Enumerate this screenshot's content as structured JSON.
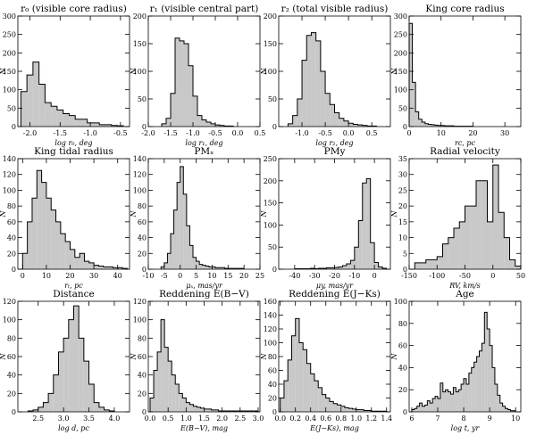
{
  "chart_data": [
    {
      "type": "histogram",
      "title": "r₀ (visible core radius)",
      "xlabel": "log r₀, deg",
      "ylabel": "N",
      "color": "#c8c8c8",
      "bins": [
        -2.15,
        -2.05,
        -1.95,
        -1.85,
        -1.75,
        -1.65,
        -1.55,
        -1.45,
        -1.35,
        -1.25,
        -1.15,
        -1.05,
        -0.95,
        -0.85,
        -0.75,
        -0.65,
        -0.55,
        -0.45
      ],
      "counts": [
        95,
        140,
        175,
        115,
        65,
        55,
        45,
        35,
        30,
        20,
        20,
        10,
        10,
        5,
        5,
        3,
        2
      ],
      "xlim": [
        -2.2,
        -0.35
      ],
      "xticks": [
        {
          "value": -2.0,
          "label": "-2.0"
        },
        -1.5,
        {
          "value": -1.0,
          "label": "-1.0"
        },
        -0.5
      ],
      "ylim": [
        0,
        300
      ],
      "yticks": [
        0,
        50,
        100,
        150,
        200,
        250,
        300
      ]
    },
    {
      "type": "histogram",
      "title": "r₁ (visible central part)",
      "xlabel": "log r₁, deg",
      "ylabel": "N",
      "color": "#c8c8c8",
      "bins": [
        -1.7,
        -1.6,
        -1.5,
        -1.4,
        -1.3,
        -1.2,
        -1.1,
        -1.0,
        -0.9,
        -0.8,
        -0.7,
        -0.6,
        -0.5,
        -0.4,
        -0.3,
        -0.2,
        -0.1
      ],
      "counts": [
        5,
        15,
        60,
        160,
        155,
        150,
        110,
        55,
        20,
        12,
        8,
        5,
        3,
        2,
        1,
        1
      ],
      "xlim": [
        -2.0,
        0.5
      ],
      "xticks": [
        {
          "value": -2.0,
          "label": "-2.0"
        },
        -1.5,
        {
          "value": -1.0,
          "label": "-1.0"
        },
        -0.5,
        {
          "value": 0,
          "label": "0.0"
        },
        0.5
      ],
      "ylim": [
        0,
        200
      ],
      "yticks": [
        0,
        50,
        100,
        150,
        200
      ]
    },
    {
      "type": "histogram",
      "title": "r₂ (total visible radius)",
      "xlabel": "log r₂, deg",
      "ylabel": "N",
      "color": "#c8c8c8",
      "bins": [
        -1.3,
        -1.2,
        -1.1,
        -1.0,
        -0.9,
        -0.8,
        -0.7,
        -0.6,
        -0.5,
        -0.4,
        -0.3,
        -0.2,
        -0.1,
        0.0,
        0.1,
        0.2,
        0.3,
        0.4,
        0.5,
        0.6
      ],
      "counts": [
        5,
        20,
        50,
        120,
        165,
        170,
        155,
        100,
        60,
        40,
        25,
        15,
        10,
        6,
        4,
        3,
        2,
        1,
        1
      ],
      "xlim": [
        -1.5,
        0.9
      ],
      "xticks": [
        {
          "value": -1.0,
          "label": "-1.0"
        },
        -0.5,
        {
          "value": 0,
          "label": "0.0"
        },
        0.5
      ],
      "ylim": [
        0,
        200
      ],
      "yticks": [
        0,
        50,
        100,
        150,
        200
      ]
    },
    {
      "type": "histogram",
      "title": "King core radius",
      "xlabel": "rc, pc",
      "ylabel": "N",
      "color": "#c8c8c8",
      "bins": [
        0,
        1,
        2,
        3,
        4,
        5,
        6,
        7,
        8,
        9,
        10,
        11,
        12,
        13,
        14,
        15,
        16,
        17,
        18,
        19,
        20
      ],
      "counts": [
        280,
        120,
        40,
        20,
        12,
        8,
        6,
        5,
        4,
        3,
        3,
        2,
        2,
        2,
        1,
        1,
        1,
        1,
        1,
        1
      ],
      "xlim": [
        0,
        35
      ],
      "xticks": [
        0,
        10,
        20,
        30
      ],
      "ylim": [
        0,
        300
      ],
      "yticks": [
        0,
        50,
        100,
        150,
        200,
        250,
        300
      ]
    },
    {
      "type": "histogram",
      "title": "King tidal radius",
      "xlabel": "rₜ, pc",
      "ylabel": "N",
      "color": "#c8c8c8",
      "bins": [
        0,
        2,
        4,
        6,
        8,
        10,
        12,
        14,
        16,
        18,
        20,
        22,
        24,
        26,
        28,
        30,
        32,
        34,
        36,
        38,
        40,
        42,
        44
      ],
      "counts": [
        20,
        60,
        90,
        125,
        110,
        90,
        75,
        60,
        45,
        35,
        25,
        15,
        20,
        10,
        8,
        5,
        4,
        3,
        3,
        2,
        2,
        1
      ],
      "xlim": [
        -2,
        45
      ],
      "xticks": [
        0,
        10,
        20,
        30,
        40
      ],
      "ylim": [
        0,
        140
      ],
      "yticks": [
        0,
        20,
        40,
        60,
        80,
        100,
        120,
        140
      ]
    },
    {
      "type": "histogram",
      "title": "PMₓ",
      "xlabel": "μₓ, mas/yr",
      "ylabel": "N",
      "color": "#c8c8c8",
      "bins": [
        -6,
        -5,
        -4,
        -3,
        -2,
        -1,
        0,
        1,
        2,
        3,
        4,
        5,
        6,
        7,
        8,
        9,
        10,
        11,
        12,
        13,
        14,
        15,
        16,
        17,
        18,
        19,
        20
      ],
      "counts": [
        3,
        8,
        20,
        45,
        75,
        110,
        130,
        95,
        55,
        30,
        15,
        10,
        6,
        5,
        4,
        3,
        3,
        2,
        2,
        2,
        1,
        1,
        1,
        1,
        1,
        1
      ],
      "xlim": [
        -10,
        25
      ],
      "xticks": [
        -10,
        -5,
        0,
        5,
        10,
        15,
        20,
        25
      ],
      "ylim": [
        0,
        140
      ],
      "yticks": [
        0,
        20,
        40,
        60,
        80,
        100,
        120,
        140
      ]
    },
    {
      "type": "histogram",
      "title": "PMy",
      "xlabel": "μy, mas/yr",
      "ylabel": "N",
      "color": "#c8c8c8",
      "bins": [
        -40,
        -38,
        -36,
        -34,
        -32,
        -30,
        -28,
        -26,
        -24,
        -22,
        -20,
        -18,
        -16,
        -14,
        -12,
        -10,
        -8,
        -6,
        -4,
        -2,
        0,
        2,
        4,
        6
      ],
      "counts": [
        1,
        1,
        1,
        1,
        2,
        1,
        2,
        2,
        3,
        3,
        4,
        5,
        8,
        12,
        20,
        50,
        110,
        195,
        205,
        60,
        15,
        5,
        2
      ],
      "xlim": [
        -48,
        8
      ],
      "xticks": [
        -40,
        -30,
        -20,
        -10,
        0
      ],
      "ylim": [
        0,
        250
      ],
      "yticks": [
        0,
        50,
        100,
        150,
        200,
        250
      ]
    },
    {
      "type": "histogram",
      "title": "Radial velocity",
      "xlabel": "RV, km/s",
      "ylabel": "N",
      "color": "#c8c8c8",
      "bins": [
        -140,
        -130,
        -120,
        -110,
        -100,
        -90,
        -80,
        -70,
        -60,
        -50,
        -40,
        -30,
        -20,
        -10,
        0,
        10,
        20,
        30,
        40,
        50
      ],
      "counts": [
        2,
        2,
        3,
        3,
        4,
        8,
        10,
        13,
        15,
        20,
        20,
        28,
        28,
        15,
        33,
        18,
        10,
        3,
        1
      ],
      "xlim": [
        -150,
        50
      ],
      "xticks": [
        -150,
        -100,
        -50,
        0,
        50
      ],
      "ylim": [
        0,
        35
      ],
      "yticks": [
        0,
        5,
        10,
        15,
        20,
        25,
        30,
        35
      ]
    },
    {
      "type": "histogram",
      "title": "Distance",
      "xlabel": "log d, pc",
      "ylabel": "N",
      "color": "#c8c8c8",
      "bins": [
        2.3,
        2.4,
        2.5,
        2.6,
        2.7,
        2.8,
        2.9,
        3.0,
        3.1,
        3.2,
        3.3,
        3.4,
        3.5,
        3.6,
        3.7,
        3.8,
        3.9,
        4.0
      ],
      "counts": [
        1,
        2,
        5,
        10,
        20,
        40,
        65,
        80,
        100,
        115,
        80,
        55,
        30,
        10,
        5,
        2,
        1
      ],
      "xlim": [
        2.1,
        4.3
      ],
      "xticks": [
        2.5,
        {
          "value": 3,
          "label": "3.0"
        },
        3.5,
        {
          "value": 4,
          "label": "4.0"
        }
      ],
      "ylim": [
        0,
        120
      ],
      "yticks": [
        0,
        20,
        40,
        60,
        80,
        100,
        120
      ]
    },
    {
      "type": "histogram",
      "title": "Reddening E(B−V)",
      "xlabel": "E(B−V), mag",
      "ylabel": "N",
      "color": "#c8c8c8",
      "bins": [
        0,
        0.1,
        0.2,
        0.3,
        0.4,
        0.5,
        0.6,
        0.7,
        0.8,
        0.9,
        1.0,
        1.1,
        1.2,
        1.3,
        1.4,
        1.5,
        1.6,
        1.7,
        1.8,
        1.9,
        2.0,
        2.1,
        2.2,
        2.3,
        2.4,
        2.5,
        2.6,
        2.7,
        2.8,
        2.9,
        3.0
      ],
      "counts": [
        15,
        45,
        65,
        100,
        70,
        55,
        40,
        30,
        20,
        15,
        10,
        8,
        6,
        5,
        4,
        3,
        3,
        2,
        2,
        1,
        1,
        1,
        1,
        1,
        1,
        1,
        1,
        1,
        1,
        1
      ],
      "xlim": [
        -0.05,
        3.05
      ],
      "xticks": [
        {
          "value": 0,
          "label": "0.0"
        },
        0.5,
        {
          "value": 1,
          "label": "1.0"
        },
        1.5,
        {
          "value": 2,
          "label": "2.0"
        },
        2.5,
        {
          "value": 3,
          "label": "3.0"
        }
      ],
      "ylim": [
        0,
        120
      ],
      "yticks": [
        0,
        20,
        40,
        60,
        80,
        100,
        120
      ]
    },
    {
      "type": "histogram",
      "title": "Reddening E(J−Ks)",
      "xlabel": "E(J−Ks), mag",
      "ylabel": "N",
      "color": "#c8c8c8",
      "bins": [
        0,
        0.05,
        0.1,
        0.15,
        0.2,
        0.25,
        0.3,
        0.35,
        0.4,
        0.45,
        0.5,
        0.55,
        0.6,
        0.65,
        0.7,
        0.75,
        0.8,
        0.85,
        0.9,
        0.95,
        1.0,
        1.05,
        1.1,
        1.15,
        1.2,
        1.25,
        1.3,
        1.35,
        1.4
      ],
      "counts": [
        20,
        45,
        75,
        110,
        135,
        100,
        90,
        70,
        55,
        45,
        35,
        25,
        20,
        15,
        12,
        10,
        8,
        6,
        5,
        4,
        3,
        3,
        2,
        2,
        1,
        1,
        1,
        1
      ],
      "xlim": [
        -0.02,
        1.45
      ],
      "xticks": [
        {
          "value": 0,
          "label": "0.0"
        },
        0.2,
        0.4,
        0.6,
        0.8,
        {
          "value": 1,
          "label": "1.0"
        },
        1.2,
        1.4
      ],
      "ylim": [
        0,
        160
      ],
      "yticks": [
        0,
        20,
        40,
        60,
        80,
        100,
        120,
        140,
        160
      ]
    },
    {
      "type": "histogram",
      "title": "Age",
      "xlabel": "log t, yr",
      "ylabel": "N",
      "color": "#c8c8c8",
      "bins": [
        6.0,
        6.1,
        6.2,
        6.3,
        6.4,
        6.5,
        6.6,
        6.7,
        6.8,
        6.9,
        7.0,
        7.1,
        7.2,
        7.3,
        7.4,
        7.5,
        7.6,
        7.7,
        7.8,
        7.9,
        8.0,
        8.1,
        8.2,
        8.3,
        8.4,
        8.5,
        8.6,
        8.7,
        8.8,
        8.9,
        9.0,
        9.1,
        9.2,
        9.3,
        9.4,
        9.5,
        9.6,
        9.7,
        9.8,
        9.9,
        10.0
      ],
      "counts": [
        2,
        3,
        5,
        8,
        5,
        6,
        10,
        8,
        12,
        14,
        12,
        26,
        18,
        20,
        18,
        16,
        22,
        18,
        20,
        25,
        30,
        25,
        35,
        40,
        45,
        50,
        55,
        62,
        90,
        75,
        60,
        40,
        25,
        15,
        8,
        5,
        3,
        2,
        1,
        1
      ],
      "xlim": [
        5.9,
        10.2
      ],
      "xticks": [
        6,
        7,
        8,
        9,
        10
      ],
      "ylim": [
        0,
        100
      ],
      "yticks": [
        0,
        20,
        40,
        60,
        80,
        100
      ]
    }
  ]
}
